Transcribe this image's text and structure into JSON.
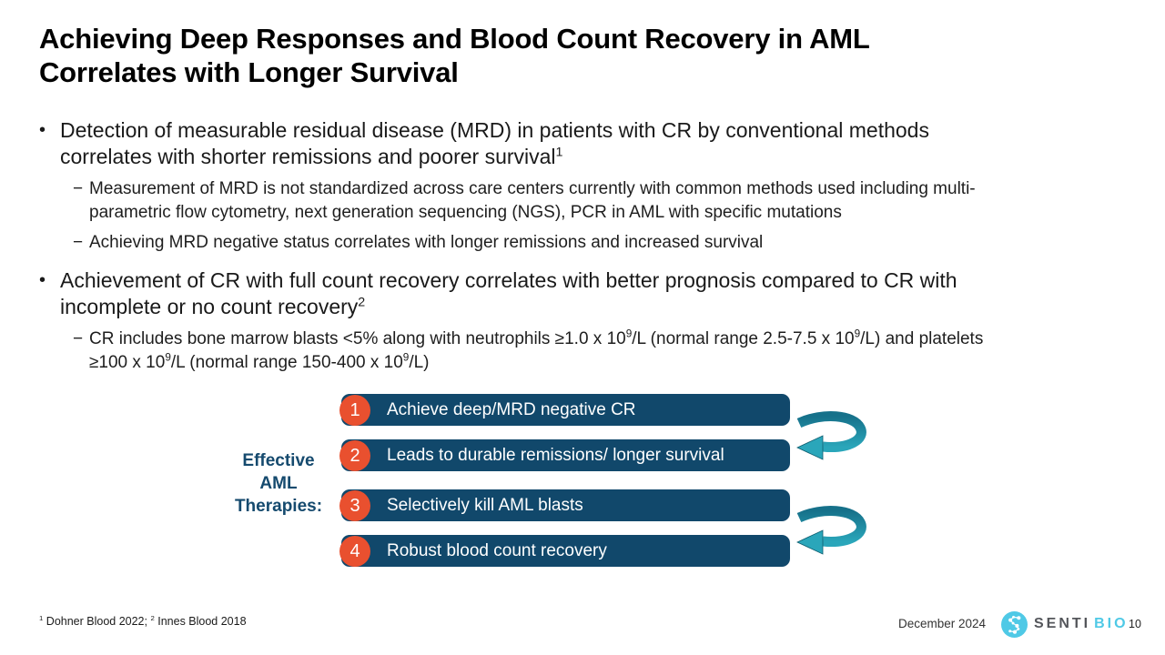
{
  "slide": {
    "title": "Achieving Deep Responses and Blood Count Recovery in AML\nCorrelates with Longer Survival",
    "bullets": [
      {
        "level": 1,
        "marker": "•",
        "rich": [
          {
            "t": "Detection of measurable residual disease (MRD) in patients with CR by conventional methods\ncorrelates with shorter remissions and poorer survival"
          },
          {
            "sup": "1"
          }
        ]
      },
      {
        "level": 2,
        "marker": "−",
        "rich": [
          {
            "t": "Measurement of MRD is not standardized across care centers currently with common methods used including multi-\nparametric flow cytometry, next generation sequencing (NGS), PCR in AML with specific mutations"
          }
        ]
      },
      {
        "level": 2,
        "marker": "−",
        "rich": [
          {
            "t": "Achieving MRD negative status correlates with longer remissions and increased survival"
          }
        ]
      },
      {
        "level": 1,
        "marker": "•",
        "rich": [
          {
            "t": "Achievement of CR with full count recovery correlates with better prognosis compared to CR with\nincomplete or no count recovery"
          },
          {
            "sup": "2"
          }
        ]
      },
      {
        "level": 2,
        "marker": "−",
        "rich": [
          {
            "t": "CR includes bone marrow blasts <5% along with neutrophils ≥1.0 x 10"
          },
          {
            "sup": "9"
          },
          {
            "t": "/L (normal range 2.5-7.5 x 10"
          },
          {
            "sup": "9"
          },
          {
            "t": "/L) and platelets\n≥100 x 10"
          },
          {
            "sup": "9"
          },
          {
            "t": "/L (normal range 150-400 x 10"
          },
          {
            "sup": "9"
          },
          {
            "t": "/L)"
          }
        ]
      }
    ]
  },
  "diagram": {
    "label_lines": [
      "Effective",
      "AML",
      "Therapies:"
    ],
    "steps": [
      {
        "num": "1",
        "label": "Achieve deep/MRD negative CR"
      },
      {
        "num": "2",
        "label": "Leads to durable remissions/ longer survival"
      },
      {
        "num": "3",
        "label": "Selectively kill AML blasts"
      },
      {
        "num": "4",
        "label": "Robust blood count recovery"
      }
    ],
    "colors": {
      "bar": "#11486B",
      "step_circle": "#E9502F",
      "arrow_dark": "#16718A",
      "arrow_light": "#2AA6BA",
      "label_text": "#154A6E"
    }
  },
  "footer": {
    "footnote": [
      {
        "sup": "1"
      },
      {
        "t": " Dohner Blood 2022; "
      },
      {
        "sup": "2"
      },
      {
        "t": " Innes Blood 2018"
      }
    ],
    "date": "December 2024",
    "logo_text_primary": "SENTI",
    "logo_text_secondary": "BIO",
    "logo_blue": "#4FC9E6",
    "logo_gray": "#54565B",
    "page_number": "10"
  }
}
